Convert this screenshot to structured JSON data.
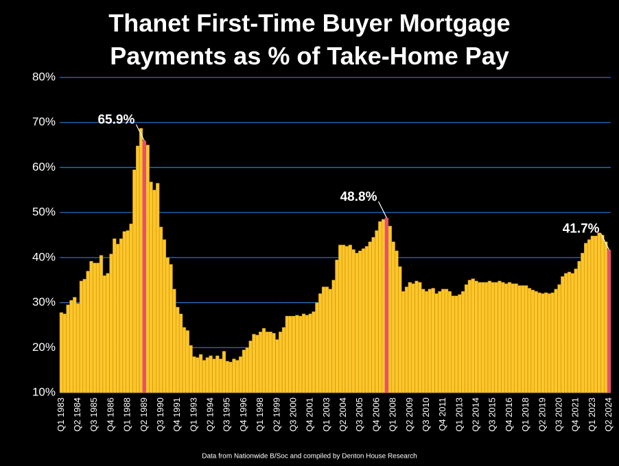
{
  "chart_data": {
    "type": "bar",
    "title": "Thanet First-Time Buyer Mortgage Payments as % of Take-Home Pay",
    "source": "Data from Nationwide B/Soc and compiled by Denton House Research",
    "categories": [
      "Q1 1983",
      null,
      null,
      null,
      null,
      "Q2 1984",
      null,
      null,
      null,
      null,
      "Q3 1985",
      null,
      null,
      null,
      null,
      "Q4 1986",
      null,
      null,
      null,
      null,
      "Q1 1988",
      null,
      null,
      null,
      null,
      "Q2 1989",
      null,
      null,
      null,
      null,
      "Q3 1990",
      null,
      null,
      null,
      null,
      "Q4 1991",
      null,
      null,
      null,
      null,
      "Q1 1993",
      null,
      null,
      null,
      null,
      "Q2 1994",
      null,
      null,
      null,
      null,
      "Q3 1995",
      null,
      null,
      null,
      null,
      "Q4 1996",
      null,
      null,
      null,
      null,
      "Q1 1998",
      null,
      null,
      null,
      null,
      "Q2 1999",
      null,
      null,
      null,
      null,
      "Q3 2000",
      null,
      null,
      null,
      null,
      "Q4 2001",
      null,
      null,
      null,
      null,
      "Q1 2003",
      null,
      null,
      null,
      null,
      "Q2 2004",
      null,
      null,
      null,
      null,
      "Q3 2005",
      null,
      null,
      null,
      null,
      "Q4 2006",
      null,
      null,
      null,
      null,
      "Q1 2008",
      null,
      null,
      null,
      null,
      "Q2 2009",
      null,
      null,
      null,
      null,
      "Q3 2010",
      null,
      null,
      null,
      null,
      "Q4 2011",
      null,
      null,
      null,
      null,
      "Q1 2013",
      null,
      null,
      null,
      null,
      "Q2 2014",
      null,
      null,
      null,
      null,
      "Q3 2015",
      null,
      null,
      null,
      null,
      "Q4 2016",
      null,
      null,
      null,
      null,
      "Q1 2018",
      null,
      null,
      null,
      null,
      "Q2 2019",
      null,
      null,
      null,
      null,
      "Q3 2020",
      null,
      null,
      null,
      null,
      "Q4 2021",
      null,
      null,
      null,
      null,
      "Q1 2023",
      null,
      null,
      null,
      null,
      "Q2 2024"
    ],
    "values": [
      27.8,
      27.5,
      29.5,
      30.5,
      31.2,
      29.8,
      34.8,
      35.2,
      37,
      39.2,
      38.8,
      38.8,
      40.5,
      36,
      36.5,
      40.8,
      44.2,
      43,
      44.2,
      45.8,
      46,
      47.5,
      59.5,
      64.8,
      68.7,
      65.9,
      65,
      56.8,
      55,
      56.5,
      46.8,
      44,
      40,
      38.5,
      33,
      29,
      27.5,
      24.5,
      23.8,
      20.5,
      18,
      17.8,
      18.5,
      17.2,
      17.8,
      18.2,
      17.5,
      18.2,
      17.5,
      19.2,
      17,
      16.8,
      17.5,
      17.2,
      18,
      19.5,
      20,
      21.5,
      23,
      22.8,
      23.5,
      24.3,
      23.5,
      23.5,
      23.2,
      21.8,
      23.5,
      24.5,
      27,
      27,
      27,
      27.2,
      27,
      27.5,
      27.2,
      27.5,
      28,
      30,
      32,
      33.5,
      33.5,
      33,
      35,
      39.5,
      42.8,
      42.8,
      42.5,
      42.8,
      41.8,
      41,
      41.5,
      42,
      42.5,
      43.5,
      44.5,
      46,
      48,
      48.5,
      48.8,
      47,
      43.5,
      41.5,
      38,
      32.5,
      33.5,
      34.5,
      34.2,
      34.8,
      34.5,
      33,
      32.5,
      33,
      33.2,
      32,
      32.5,
      33,
      33,
      32.5,
      31.5,
      31.5,
      31.8,
      32.5,
      34,
      35,
      35.3,
      34.8,
      34.5,
      34.5,
      34.5,
      34.8,
      34.5,
      34.5,
      34.8,
      34.5,
      34.2,
      34.5,
      34.2,
      34.2,
      33.8,
      33.8,
      33.8,
      33.2,
      32.8,
      32.5,
      32.2,
      32,
      32.2,
      32,
      32.2,
      33,
      34,
      35.8,
      36.5,
      36.8,
      36.5,
      37.5,
      39.2,
      41,
      43.2,
      44,
      44.8,
      44.8,
      45.5,
      45,
      43.5,
      41.7
    ],
    "value_labels": [
      null,
      null,
      null,
      null,
      null,
      null,
      null,
      null,
      null,
      null,
      null,
      null,
      null,
      null,
      null,
      null,
      null,
      null,
      null,
      null,
      null,
      null,
      null,
      null,
      null,
      "65.9%",
      null,
      null,
      null,
      null,
      null,
      null,
      null,
      null,
      null,
      null,
      null,
      null,
      null,
      null,
      null,
      null,
      null,
      null,
      null,
      null,
      null,
      null,
      null,
      null,
      null,
      null,
      null,
      null,
      null,
      null,
      null,
      null,
      null,
      null,
      null,
      null,
      null,
      null,
      null,
      null,
      null,
      null,
      null,
      null,
      null,
      null,
      null,
      null,
      null,
      null,
      null,
      null,
      null,
      null,
      null,
      null,
      null,
      null,
      null,
      null,
      null,
      null,
      null,
      null,
      null,
      null,
      null,
      null,
      null,
      null,
      null,
      null,
      "48.8%",
      null,
      null,
      null,
      null,
      null,
      null,
      null,
      null,
      null,
      null,
      null,
      null,
      null,
      null,
      null,
      null,
      null,
      null,
      null,
      null,
      null,
      null,
      null,
      null,
      null,
      null,
      null,
      null,
      null,
      null,
      null,
      null,
      null,
      null,
      null,
      null,
      null,
      null,
      null,
      null,
      null,
      null,
      null,
      null,
      null,
      null,
      null,
      null,
      null,
      null,
      null,
      null,
      null,
      null,
      null,
      null,
      null,
      null,
      null,
      null,
      null,
      null,
      null,
      null,
      null,
      null,
      "41.7%"
    ],
    "color": "#ffc62a",
    "highlight_color": "#e8506a",
    "ylim": [
      10,
      80
    ],
    "yticks": [
      {
        "value": 10,
        "label": "10%"
      },
      {
        "value": 20,
        "label": "20%"
      },
      {
        "value": 30,
        "label": "30%"
      },
      {
        "value": 40,
        "label": "40%"
      },
      {
        "value": 50,
        "label": "50%"
      },
      {
        "value": 60,
        "label": "60%"
      },
      {
        "value": 70,
        "label": "70%"
      },
      {
        "value": 80,
        "label": "80%"
      }
    ],
    "grid": true
  }
}
